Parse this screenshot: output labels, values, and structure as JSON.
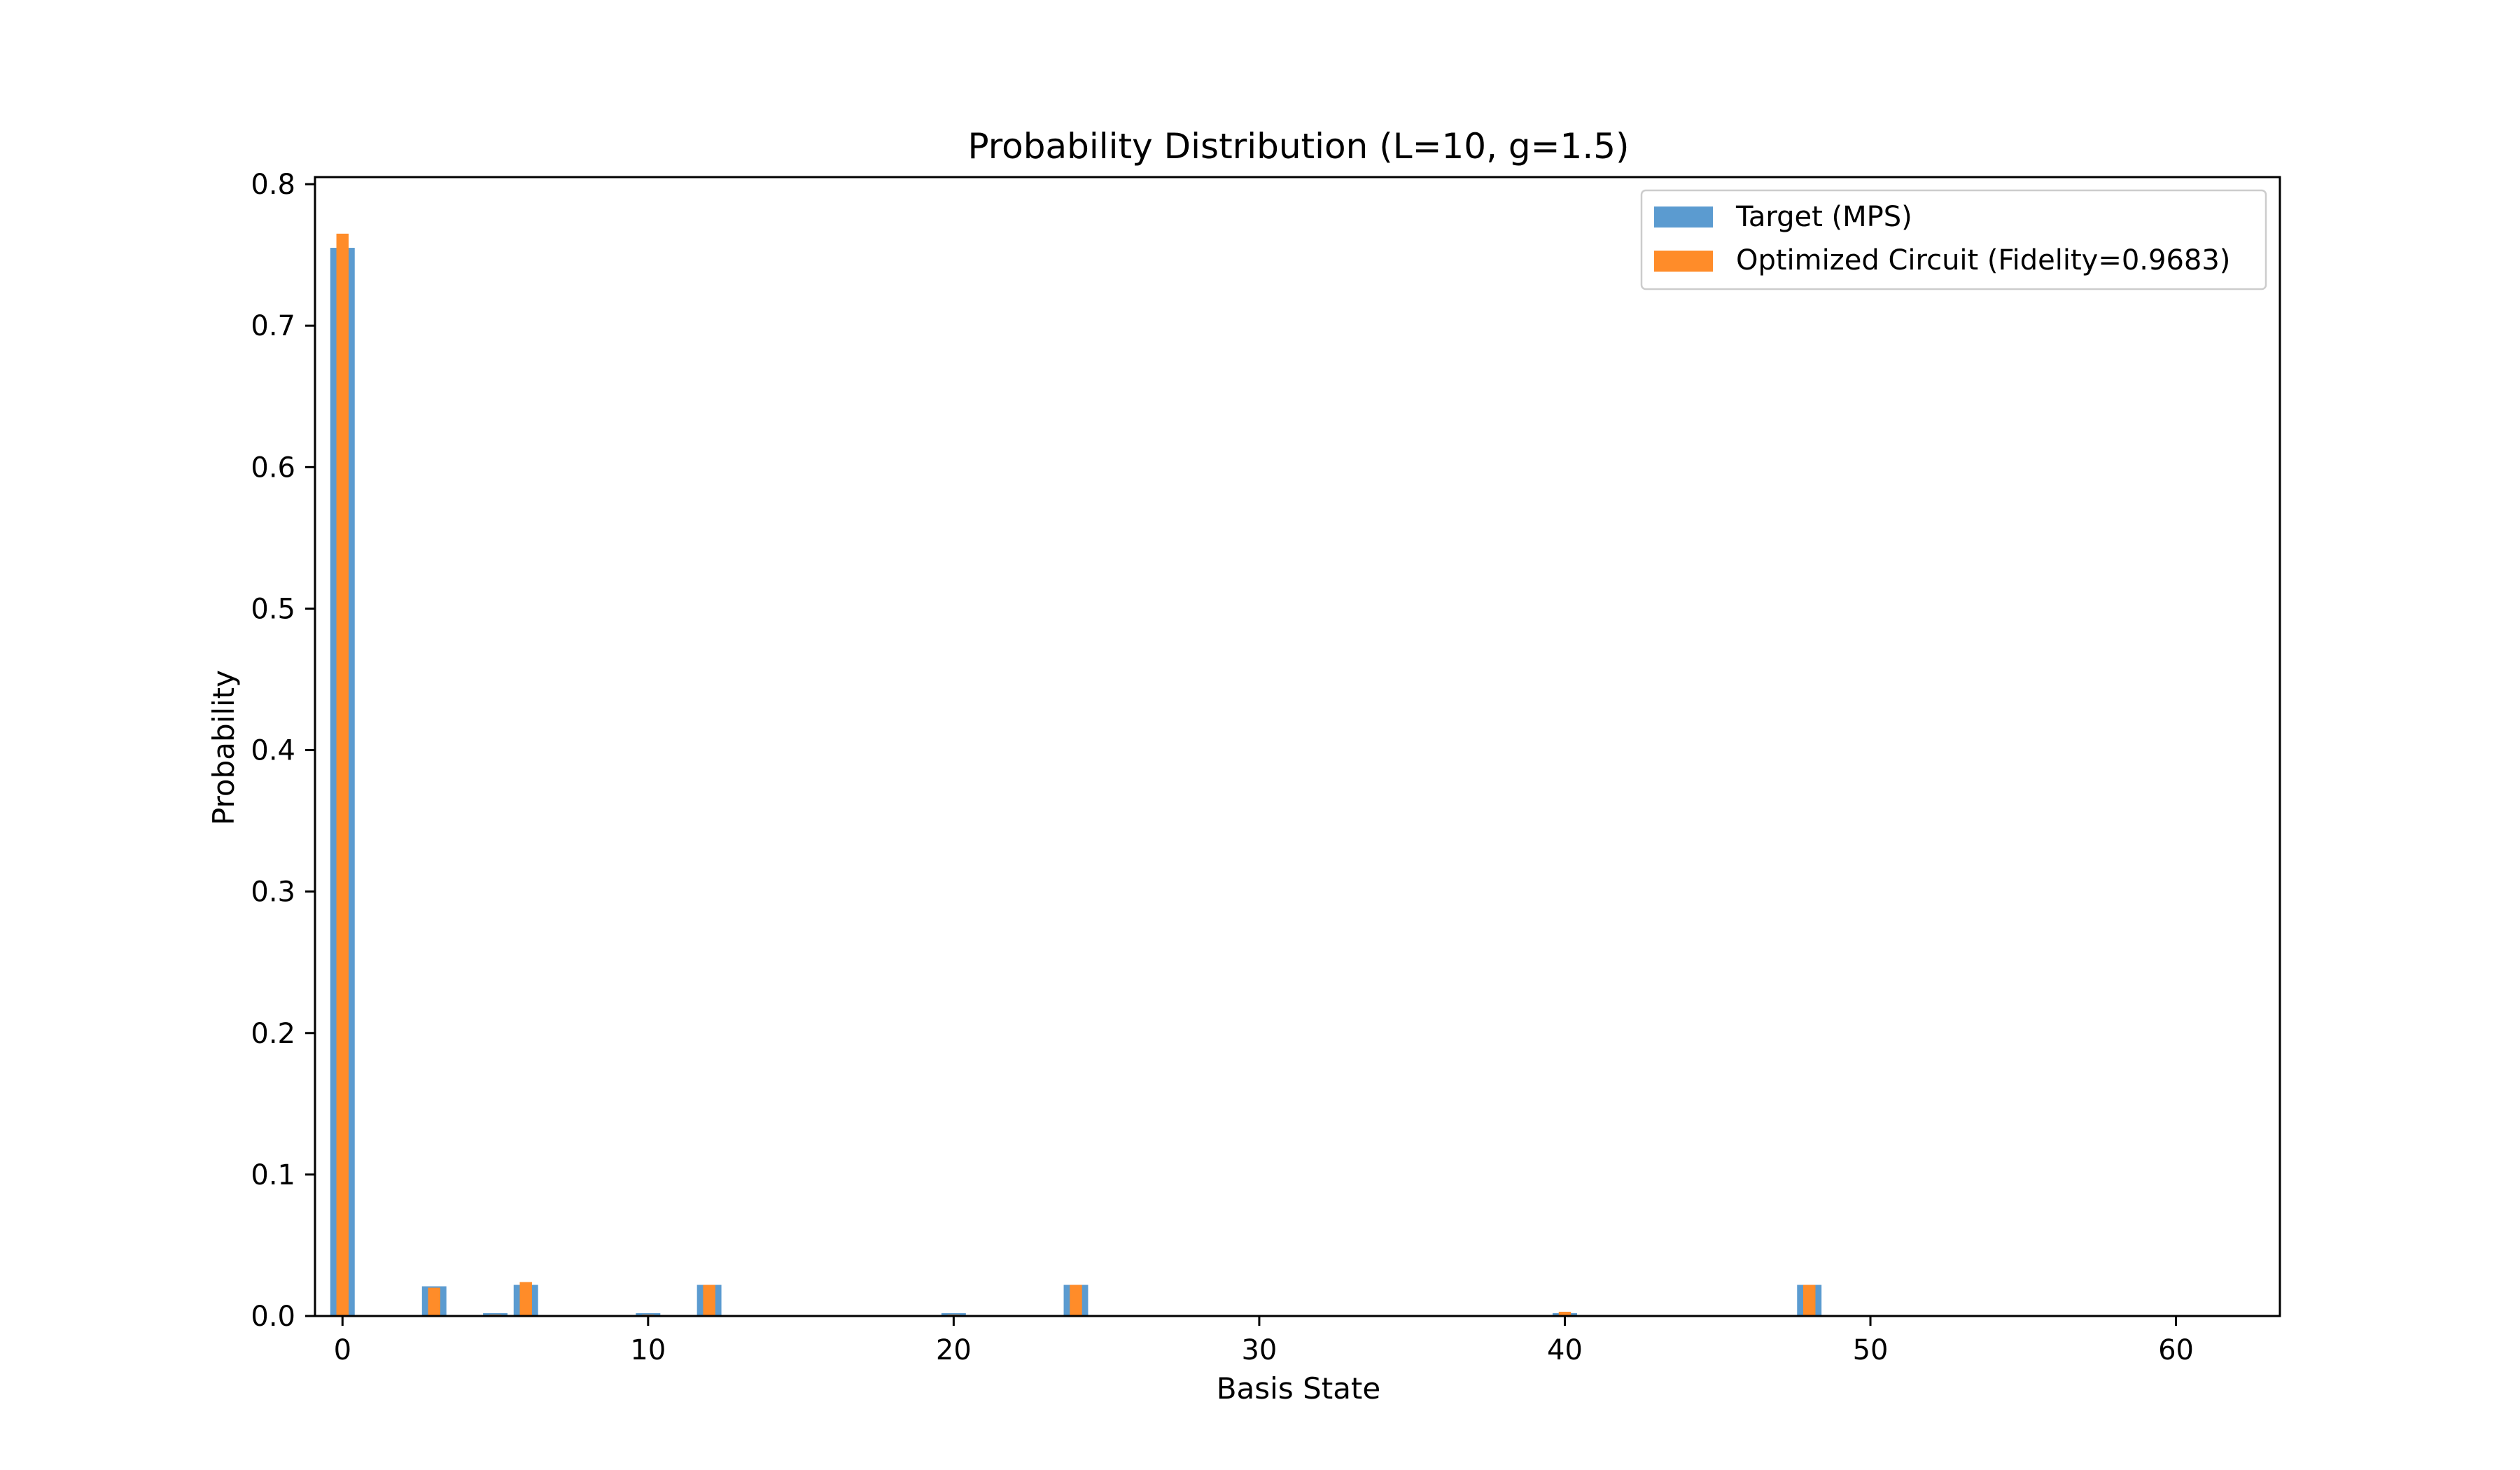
{
  "chart_data": {
    "type": "bar",
    "title": "Probability Distribution (L=10, g=1.5)",
    "xlabel": "Basis State",
    "ylabel": "Probability",
    "xlim": [
      -0.9,
      63.4
    ],
    "ylim": [
      0,
      0.805
    ],
    "xticks": [
      0,
      10,
      20,
      30,
      40,
      50,
      60
    ],
    "yticks": [
      0.0,
      0.1,
      0.2,
      0.3,
      0.4,
      0.5,
      0.6,
      0.7,
      0.8
    ],
    "x": [
      0,
      3,
      5,
      6,
      10,
      12,
      20,
      24,
      40,
      48
    ],
    "series": [
      {
        "name": "Target (MPS)",
        "color": "#5b9bd0",
        "values": [
          0.755,
          0.021,
          0.002,
          0.022,
          0.002,
          0.022,
          0.002,
          0.022,
          0.002,
          0.022
        ]
      },
      {
        "name": "Optimized Circuit (Fidelity=0.9683)",
        "color": "#ff8c29",
        "values": [
          0.765,
          0.02,
          0.001,
          0.024,
          0.001,
          0.022,
          0.001,
          0.022,
          0.003,
          0.022
        ]
      }
    ],
    "legend": {
      "position": "top-right"
    }
  }
}
